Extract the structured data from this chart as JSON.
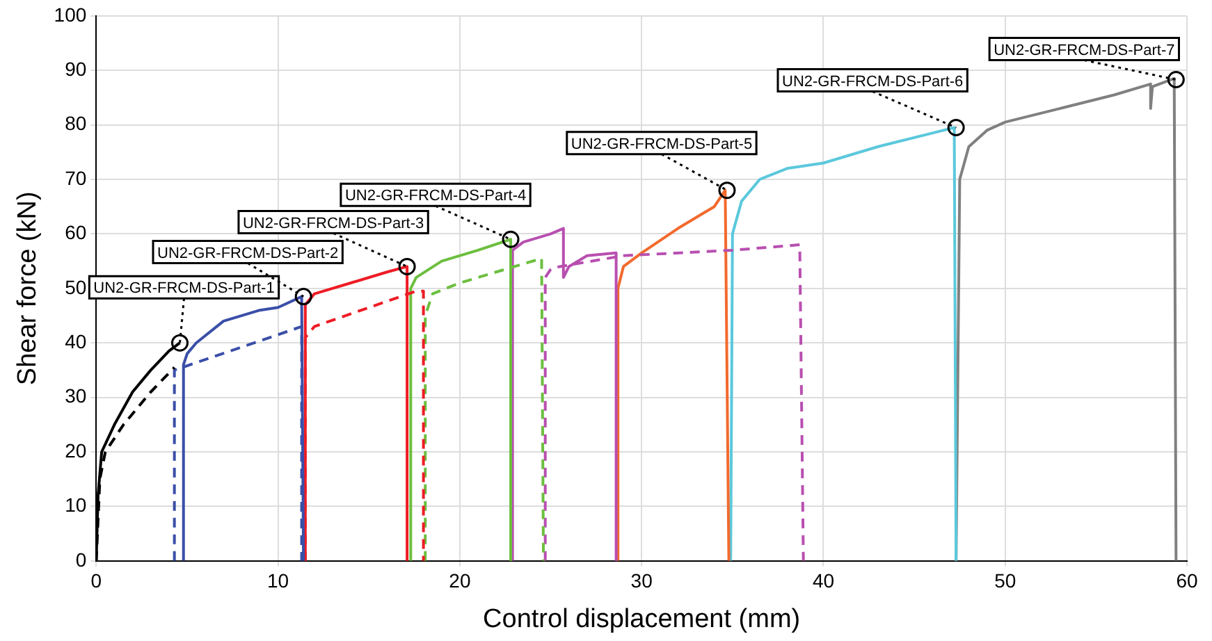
{
  "chart_data": {
    "type": "line",
    "xlabel": "Control displacement (mm)",
    "ylabel": "Shear force (kN)",
    "xlim": [
      0,
      60
    ],
    "ylim": [
      0,
      100
    ],
    "xticks": [
      0,
      10,
      20,
      30,
      40,
      50,
      60
    ],
    "yticks": [
      0,
      10,
      20,
      30,
      40,
      50,
      60,
      70,
      80,
      90,
      100
    ],
    "grid": true,
    "legend": false,
    "marker": "none",
    "series": [
      {
        "color": "#000000",
        "line_style": "solid",
        "x": [
          0,
          0.1,
          0.3,
          1,
          2,
          3,
          4,
          4.6
        ],
        "values": [
          0,
          12,
          20,
          25,
          31,
          35,
          38.5,
          40
        ]
      },
      {
        "color": "#000000",
        "line_style": "dashed",
        "x": [
          0,
          0.2,
          0.5,
          1.5,
          3,
          4.3
        ],
        "values": [
          0,
          15,
          20,
          25,
          31,
          35.5
        ]
      },
      {
        "color": "#3a4fa8",
        "line_style": "solid",
        "x": [
          4.8,
          4.8,
          5,
          5.5,
          7,
          9,
          10,
          11.3,
          11.4
        ],
        "values": [
          0,
          36,
          38,
          40,
          44,
          46,
          46.5,
          48.5,
          0
        ]
      },
      {
        "color": "#3a4fa8",
        "line_style": "dashed",
        "x": [
          4.3,
          4.3,
          11.3,
          11.3
        ],
        "values": [
          0,
          35,
          43,
          0
        ]
      },
      {
        "color": "#ee1c25",
        "line_style": "solid",
        "x": [
          11.5,
          11.5,
          12,
          14,
          16,
          17.1,
          17.1
        ],
        "values": [
          0,
          47,
          49,
          51,
          53,
          54,
          0
        ]
      },
      {
        "color": "#ee1c25",
        "line_style": "dashed",
        "x": [
          11.5,
          11.5,
          12,
          17.6,
          18,
          18
        ],
        "values": [
          0,
          41,
          43,
          49.5,
          49.5,
          0
        ]
      },
      {
        "color": "#6cbf3f",
        "line_style": "solid",
        "x": [
          17.3,
          17.3,
          17.6,
          19,
          21,
          22.8,
          22.8
        ],
        "values": [
          0,
          50,
          52,
          55,
          57,
          59,
          0
        ]
      },
      {
        "color": "#6cbf3f",
        "line_style": "dashed",
        "x": [
          18.1,
          18.1,
          18.5,
          20,
          24.5,
          24.6
        ],
        "values": [
          0,
          45,
          49,
          51,
          55.5,
          0
        ]
      },
      {
        "color": "#b84fb0",
        "line_style": "solid",
        "x": [
          22.9,
          22.9,
          23.5,
          25,
          25.7,
          25.7,
          26,
          27,
          28.6,
          28.6
        ],
        "values": [
          0,
          57,
          58.5,
          60,
          61,
          52,
          54,
          56,
          56.5,
          0
        ]
      },
      {
        "color": "#b84fb0",
        "line_style": "dashed",
        "x": [
          24.7,
          24.7,
          25,
          25.5,
          29,
          35,
          38.7,
          38.9
        ],
        "values": [
          0,
          52,
          53.5,
          54,
          56,
          57,
          58,
          0
        ]
      },
      {
        "color": "#f26a2d",
        "line_style": "solid",
        "x": [
          28.7,
          28.7,
          29,
          30,
          32,
          34,
          34.6,
          34.8
        ],
        "values": [
          0,
          50,
          54,
          56.5,
          61,
          65,
          68,
          0
        ]
      },
      {
        "color": "#5bc8dc",
        "line_style": "solid",
        "x": [
          34.9,
          35,
          35.5,
          36.5,
          38,
          40,
          43,
          46,
          47.2,
          47.3
        ],
        "values": [
          0,
          60,
          66,
          70,
          72,
          73,
          76,
          78.5,
          79.5,
          0
        ]
      },
      {
        "color": "#808080",
        "line_style": "solid",
        "x": [
          47.3,
          47.5,
          48,
          49,
          50,
          53,
          56,
          58,
          58,
          58.1,
          59.3,
          59.4
        ],
        "values": [
          0,
          70,
          76,
          79,
          80.5,
          83,
          85.5,
          87.5,
          83,
          87,
          88.5,
          0
        ]
      }
    ],
    "annotations": [
      {
        "text": "UN2-GR-FRCM-DS-Part-1",
        "x": 4.6,
        "y": 40
      },
      {
        "text": "UN2-GR-FRCM-DS-Part-2",
        "x": 11.4,
        "y": 48.5
      },
      {
        "text": "UN2-GR-FRCM-DS-Part-3",
        "x": 17.1,
        "y": 54
      },
      {
        "text": "UN2-GR-FRCM-DS-Part-4",
        "x": 22.8,
        "y": 59
      },
      {
        "text": "UN2-GR-FRCM-DS-Part-5",
        "x": 34.7,
        "y": 68
      },
      {
        "text": "UN2-GR-FRCM-DS-Part-6",
        "x": 47.3,
        "y": 79.5
      },
      {
        "text": "UN2-GR-FRCM-DS-Part-7",
        "x": 59.4,
        "y": 88.3
      }
    ]
  }
}
